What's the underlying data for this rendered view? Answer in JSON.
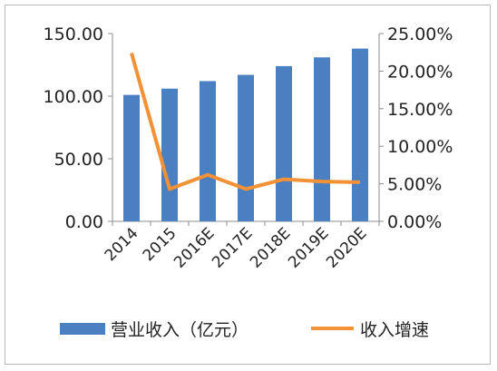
{
  "chart_data": {
    "type": "bar",
    "categories": [
      "2014",
      "2015",
      "2016E",
      "2017E",
      "2018E",
      "2019E",
      "2020E"
    ],
    "series": [
      {
        "name": "营业收入（亿元）",
        "type": "bar",
        "axis": "left",
        "color": "#4a7fc1",
        "values": [
          101,
          106,
          112,
          117,
          124,
          131,
          138
        ]
      },
      {
        "name": "收入增速",
        "type": "line",
        "axis": "right",
        "color": "#f29135",
        "values": [
          22.4,
          4.3,
          6.2,
          4.3,
          5.6,
          5.3,
          5.2
        ]
      }
    ],
    "y_left": {
      "min": 0,
      "max": 150,
      "ticks": [
        "0.00",
        "50.00",
        "100.00",
        "150.00"
      ],
      "tick_values": [
        0,
        50,
        100,
        150
      ]
    },
    "y_right": {
      "min": 0,
      "max": 25,
      "ticks": [
        "0.00%",
        "5.00%",
        "10.00%",
        "15.00%",
        "20.00%",
        "25.00%"
      ],
      "tick_values": [
        0,
        5,
        10,
        15,
        20,
        25
      ]
    },
    "grid": false,
    "legend_position": "bottom"
  }
}
